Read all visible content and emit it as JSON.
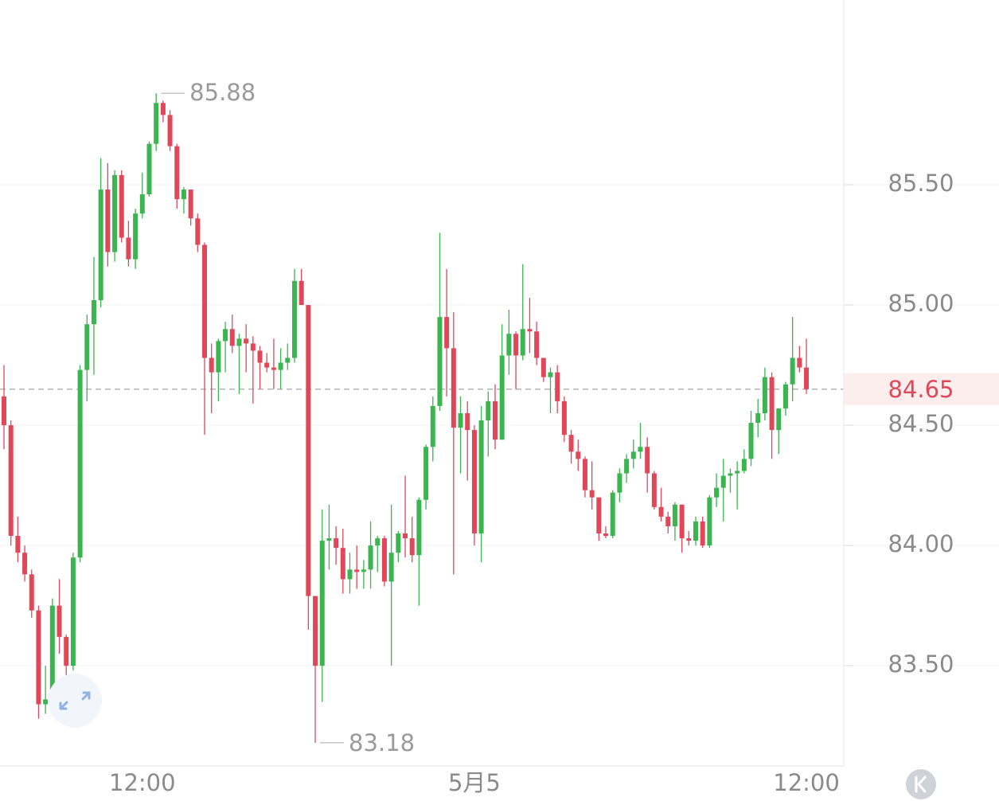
{
  "chart_data": {
    "type": "candlestick",
    "categories": [
      null,
      null,
      null,
      null,
      null,
      null,
      null,
      null,
      null,
      null,
      null,
      null,
      null,
      null,
      null,
      null,
      null,
      null,
      null,
      null,
      "12:00",
      null,
      null,
      null,
      null,
      null,
      null,
      null,
      null,
      null,
      null,
      null,
      null,
      null,
      null,
      null,
      null,
      null,
      null,
      null,
      null,
      null,
      null,
      null,
      null,
      null,
      null,
      null,
      null,
      null,
      null,
      null,
      null,
      null,
      null,
      null,
      null,
      null,
      null,
      null,
      null,
      null,
      null,
      null,
      null,
      null,
      null,
      null,
      "5月5",
      null,
      null,
      null,
      null,
      null,
      null,
      null,
      null,
      null,
      null,
      null,
      null,
      null,
      null,
      null,
      null,
      null,
      null,
      null,
      null,
      null,
      null,
      null,
      null,
      null,
      null,
      null,
      null,
      null,
      null,
      null,
      null,
      null,
      null,
      null,
      null,
      null,
      null,
      null,
      null,
      null,
      null,
      null,
      null,
      null,
      null,
      null,
      "12:00"
    ],
    "open": [
      84.62,
      84.5,
      84.04,
      83.97,
      83.88,
      83.73,
      83.34,
      83.36,
      83.75,
      83.62,
      83.5,
      83.95,
      84.73,
      84.92,
      85.02,
      85.48,
      85.22,
      85.54,
      85.28,
      85.19,
      85.38,
      85.46,
      85.67,
      85.84,
      85.79,
      85.66,
      85.44,
      85.48,
      85.36,
      85.25,
      84.78,
      84.72,
      84.85,
      84.9,
      84.83,
      84.86,
      84.84,
      84.81,
      84.76,
      84.74,
      84.73,
      84.76,
      84.78,
      85.1,
      85.0,
      83.79,
      83.5,
      84.02,
      84.03,
      83.99,
      83.86,
      83.9,
      83.89,
      83.9,
      84.0,
      84.03,
      83.85,
      83.97,
      84.05,
      84.03,
      83.96,
      84.19,
      84.41,
      84.58,
      84.95,
      84.82,
      84.49,
      84.55,
      84.48,
      84.05,
      84.52,
      84.6,
      84.44,
      84.79,
      84.88,
      84.79,
      84.9,
      84.89,
      84.78,
      84.7,
      84.72,
      84.6,
      84.46,
      84.39,
      84.36,
      84.23,
      84.2,
      84.05,
      84.04,
      84.22,
      84.3,
      84.36,
      84.39,
      84.41,
      84.3,
      84.16,
      84.12,
      84.08,
      84.17,
      84.03,
      84.02,
      84.1,
      84.0,
      84.2,
      84.24,
      84.29,
      84.3,
      84.31,
      84.36,
      84.51,
      84.55,
      84.7,
      84.48,
      84.57,
      84.67,
      84.78,
      84.74
    ],
    "high": [
      84.75,
      84.52,
      84.12,
      84.0,
      83.9,
      83.75,
      83.5,
      83.78,
      83.86,
      83.63,
      83.97,
      84.75,
      84.96,
      85.2,
      85.61,
      85.59,
      85.56,
      85.56,
      85.35,
      85.4,
      85.55,
      85.68,
      85.88,
      85.85,
      85.81,
      85.67,
      85.49,
      85.48,
      85.38,
      85.26,
      84.84,
      84.86,
      84.93,
      84.96,
      84.88,
      84.92,
      84.87,
      84.83,
      84.8,
      84.86,
      84.82,
      84.84,
      85.15,
      85.15,
      85.0,
      83.79,
      84.15,
      84.17,
      84.08,
      84.07,
      83.97,
      84.0,
      83.94,
      84.1,
      84.04,
      84.04,
      84.17,
      84.06,
      84.29,
      84.12,
      84.2,
      84.42,
      84.62,
      85.3,
      85.15,
      84.97,
      84.62,
      84.6,
      84.5,
      84.58,
      84.64,
      84.67,
      84.92,
      84.98,
      84.89,
      85.17,
      85.03,
      84.93,
      84.78,
      84.74,
      84.75,
      84.62,
      84.48,
      84.44,
      84.37,
      84.35,
      84.2,
      84.08,
      84.23,
      84.32,
      84.38,
      84.44,
      84.51,
      84.45,
      84.31,
      84.24,
      84.14,
      84.18,
      84.17,
      84.06,
      84.12,
      84.12,
      84.21,
      84.3,
      84.36,
      84.32,
      84.35,
      84.4,
      84.56,
      84.61,
      84.74,
      84.72,
      84.57,
      84.68,
      84.95,
      84.83,
      84.86
    ],
    "low": [
      84.4,
      84.0,
      83.93,
      83.85,
      83.7,
      83.28,
      83.3,
      83.34,
      83.55,
      83.35,
      83.48,
      83.93,
      84.6,
      84.71,
      84.99,
      85.16,
      85.18,
      85.26,
      85.16,
      85.15,
      85.36,
      85.45,
      85.64,
      85.76,
      85.64,
      85.4,
      85.38,
      85.33,
      85.22,
      84.46,
      84.55,
      84.6,
      84.72,
      84.8,
      84.63,
      84.72,
      84.59,
      84.65,
      84.72,
      84.65,
      84.65,
      84.73,
      84.76,
      85.0,
      83.65,
      83.18,
      83.35,
      83.9,
      83.92,
      83.8,
      83.8,
      83.82,
      83.82,
      83.82,
      83.89,
      83.83,
      83.5,
      83.93,
      83.95,
      83.93,
      83.75,
      84.15,
      84.35,
      84.56,
      84.62,
      83.88,
      84.3,
      84.27,
      84.0,
      83.93,
      84.37,
      84.4,
      84.44,
      84.71,
      84.65,
      84.77,
      84.8,
      84.75,
      84.68,
      84.55,
      84.55,
      84.43,
      84.34,
      84.31,
      84.2,
      84.15,
      84.02,
      84.03,
      84.03,
      84.18,
      84.26,
      84.32,
      84.36,
      84.22,
      84.15,
      84.1,
      84.05,
      84.02,
      83.97,
      84.0,
      84.0,
      83.99,
      83.99,
      84.16,
      84.1,
      84.22,
      84.15,
      84.3,
      84.33,
      84.45,
      84.52,
      84.36,
      84.38,
      84.54,
      84.6,
      84.72,
      84.63
    ],
    "close": [
      84.5,
      84.04,
      83.97,
      83.88,
      83.73,
      83.34,
      83.36,
      83.75,
      83.62,
      83.5,
      83.95,
      84.73,
      84.92,
      85.02,
      85.48,
      85.22,
      85.54,
      85.28,
      85.19,
      85.38,
      85.46,
      85.67,
      85.84,
      85.79,
      85.66,
      85.44,
      85.48,
      85.36,
      85.25,
      84.78,
      84.72,
      84.85,
      84.9,
      84.83,
      84.86,
      84.84,
      84.81,
      84.76,
      84.74,
      84.73,
      84.76,
      84.78,
      85.1,
      85.0,
      83.79,
      83.5,
      84.02,
      84.03,
      83.99,
      83.86,
      83.9,
      83.89,
      83.9,
      84.0,
      84.03,
      83.85,
      83.97,
      84.05,
      84.03,
      83.96,
      84.19,
      84.41,
      84.58,
      84.95,
      84.82,
      84.49,
      84.55,
      84.48,
      84.05,
      84.52,
      84.6,
      84.44,
      84.79,
      84.88,
      84.79,
      84.9,
      84.89,
      84.78,
      84.7,
      84.72,
      84.6,
      84.46,
      84.39,
      84.36,
      84.23,
      84.2,
      84.05,
      84.04,
      84.22,
      84.3,
      84.36,
      84.39,
      84.41,
      84.3,
      84.16,
      84.12,
      84.08,
      84.17,
      84.03,
      84.02,
      84.1,
      84.0,
      84.2,
      84.24,
      84.29,
      84.3,
      84.31,
      84.36,
      84.51,
      84.55,
      84.7,
      84.48,
      84.57,
      84.67,
      84.78,
      84.74,
      84.65
    ],
    "up_color": "#3bb54f",
    "down_color": "#e0485a",
    "ylim": [
      83.09,
      86.268
    ],
    "yticks": [
      {
        "value": 83.5,
        "label": "83.50"
      },
      {
        "value": 84,
        "label": "84.00"
      },
      {
        "value": 84.5,
        "label": "84.50"
      },
      {
        "value": 85,
        "label": "85.00"
      },
      {
        "value": 85.5,
        "label": "85.50"
      }
    ],
    "grid": true,
    "max_value": 85.88,
    "min_value": 83.18,
    "last_price": 84.65
  }
}
